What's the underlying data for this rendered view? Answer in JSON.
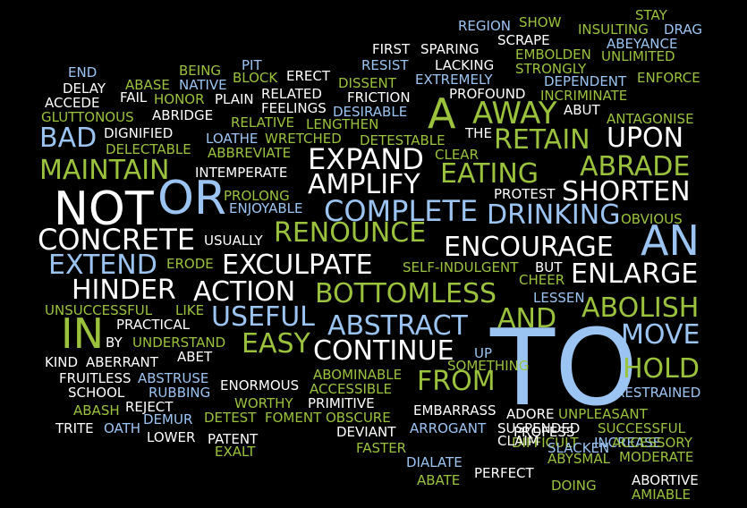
{
  "palette": {
    "background": "#000000",
    "white": "#ffffff",
    "blue": "#9cc4f2",
    "green": "#9bc23c"
  },
  "words": [
    {
      "text": "TO",
      "color": "blue"
    },
    {
      "text": "NOT",
      "color": "white"
    },
    {
      "text": "OR",
      "color": "blue"
    },
    {
      "text": "AN",
      "color": "blue"
    },
    {
      "text": "A",
      "color": "green"
    },
    {
      "text": "IN",
      "color": "green"
    },
    {
      "text": "AWAY",
      "color": "green"
    },
    {
      "text": "UPON",
      "color": "white"
    },
    {
      "text": "RETAIN",
      "color": "green"
    },
    {
      "text": "BAD",
      "color": "blue"
    },
    {
      "text": "MAINTAIN",
      "color": "green"
    },
    {
      "text": "EXPAND",
      "color": "white"
    },
    {
      "text": "AMPLIFY",
      "color": "white"
    },
    {
      "text": "EATING",
      "color": "green"
    },
    {
      "text": "ABRADE",
      "color": "green"
    },
    {
      "text": "SHORTEN",
      "color": "white"
    },
    {
      "text": "COMPLETE",
      "color": "blue"
    },
    {
      "text": "DRINKING",
      "color": "blue"
    },
    {
      "text": "CONCRETE",
      "color": "white"
    },
    {
      "text": "RENOUNCE",
      "color": "green"
    },
    {
      "text": "ENCOURAGE",
      "color": "white"
    },
    {
      "text": "EXTEND",
      "color": "blue"
    },
    {
      "text": "EXCULPATE",
      "color": "white"
    },
    {
      "text": "ENLARGE",
      "color": "white"
    },
    {
      "text": "HINDER",
      "color": "white"
    },
    {
      "text": "ACTION",
      "color": "white"
    },
    {
      "text": "BOTTOMLESS",
      "color": "green"
    },
    {
      "text": "ABOLISH",
      "color": "green"
    },
    {
      "text": "USEFUL",
      "color": "blue"
    },
    {
      "text": "ABSTRACT",
      "color": "blue"
    },
    {
      "text": "AND",
      "color": "green"
    },
    {
      "text": "MOVE",
      "color": "blue"
    },
    {
      "text": "EASY",
      "color": "green"
    },
    {
      "text": "CONTINUE",
      "color": "white"
    },
    {
      "text": "FROM",
      "color": "green"
    },
    {
      "text": "HOLD",
      "color": "green"
    },
    {
      "text": "REGION",
      "color": "blue"
    },
    {
      "text": "SHOW",
      "color": "green"
    },
    {
      "text": "STAY",
      "color": "green"
    },
    {
      "text": "INSULTING",
      "color": "green"
    },
    {
      "text": "DRAG",
      "color": "blue"
    },
    {
      "text": "ABEYANCE",
      "color": "blue"
    },
    {
      "text": "SCRAPE",
      "color": "white"
    },
    {
      "text": "FIRST",
      "color": "white"
    },
    {
      "text": "SPARING",
      "color": "white"
    },
    {
      "text": "EMBOLDEN",
      "color": "green"
    },
    {
      "text": "UNLIMITED",
      "color": "green"
    },
    {
      "text": "RESIST",
      "color": "blue"
    },
    {
      "text": "LACKING",
      "color": "white"
    },
    {
      "text": "STRONGLY",
      "color": "green"
    },
    {
      "text": "END",
      "color": "blue"
    },
    {
      "text": "BEING",
      "color": "green"
    },
    {
      "text": "PIT",
      "color": "blue"
    },
    {
      "text": "ABASE",
      "color": "green"
    },
    {
      "text": "NATIVE",
      "color": "blue"
    },
    {
      "text": "ERECT",
      "color": "white"
    },
    {
      "text": "DISSENT",
      "color": "green"
    },
    {
      "text": "EXTREMELY",
      "color": "blue"
    },
    {
      "text": "DEPENDENT",
      "color": "blue"
    },
    {
      "text": "ENFORCE",
      "color": "green"
    },
    {
      "text": "ACCEDE",
      "color": "white"
    },
    {
      "text": "BLOCK",
      "color": "green"
    },
    {
      "text": "DELAY",
      "color": "white"
    },
    {
      "text": "FAIL",
      "color": "white"
    },
    {
      "text": "HONOR",
      "color": "green"
    },
    {
      "text": "PLAIN",
      "color": "white"
    },
    {
      "text": "RELATED",
      "color": "white"
    },
    {
      "text": "FRICTION",
      "color": "white"
    },
    {
      "text": "PROFOUND",
      "color": "white"
    },
    {
      "text": "INCRIMINATE",
      "color": "green"
    },
    {
      "text": "GLUTTONOUS",
      "color": "green"
    },
    {
      "text": "ABRIDGE",
      "color": "white"
    },
    {
      "text": "FEELINGS",
      "color": "white"
    },
    {
      "text": "DESIRABLE",
      "color": "blue"
    },
    {
      "text": "ABUT",
      "color": "white"
    },
    {
      "text": "ANTAGONISE",
      "color": "green"
    },
    {
      "text": "RELATIVE",
      "color": "green"
    },
    {
      "text": "LENGTHEN",
      "color": "green"
    },
    {
      "text": "DIGNIFIED",
      "color": "white"
    },
    {
      "text": "THE",
      "color": "white"
    },
    {
      "text": "LOATHE",
      "color": "blue"
    },
    {
      "text": "WRETCHED",
      "color": "green"
    },
    {
      "text": "DETESTABLE",
      "color": "green"
    },
    {
      "text": "DELECTABLE",
      "color": "green"
    },
    {
      "text": "ABBREVIATE",
      "color": "green"
    },
    {
      "text": "CLEAR",
      "color": "green"
    },
    {
      "text": "INTEMPERATE",
      "color": "white"
    },
    {
      "text": "PROLONG",
      "color": "green"
    },
    {
      "text": "PROTEST",
      "color": "white"
    },
    {
      "text": "ENJOYABLE",
      "color": "blue"
    },
    {
      "text": "OBVIOUS",
      "color": "green"
    },
    {
      "text": "USUALLY",
      "color": "white"
    },
    {
      "text": "ERODE",
      "color": "green"
    },
    {
      "text": "SELF-INDULGENT",
      "color": "green"
    },
    {
      "text": "BUT",
      "color": "white"
    },
    {
      "text": "CHEER",
      "color": "green"
    },
    {
      "text": "LESSEN",
      "color": "blue"
    },
    {
      "text": "UNSUCCESSFUL",
      "color": "green"
    },
    {
      "text": "LIKE",
      "color": "green"
    },
    {
      "text": "PRACTICAL",
      "color": "white"
    },
    {
      "text": "BY",
      "color": "white"
    },
    {
      "text": "UNDERSTAND",
      "color": "green"
    },
    {
      "text": "KIND",
      "color": "white"
    },
    {
      "text": "ABERRANT",
      "color": "white"
    },
    {
      "text": "ABET",
      "color": "white"
    },
    {
      "text": "SOMETHING",
      "color": "green"
    },
    {
      "text": "UP",
      "color": "blue"
    },
    {
      "text": "FRUITLESS",
      "color": "white"
    },
    {
      "text": "ABSTRUSE",
      "color": "blue"
    },
    {
      "text": "ABOMINABLE",
      "color": "green"
    },
    {
      "text": "ACCESSIBLE",
      "color": "green"
    },
    {
      "text": "SCHOOL",
      "color": "white"
    },
    {
      "text": "RUBBING",
      "color": "blue"
    },
    {
      "text": "ENORMOUS",
      "color": "white"
    },
    {
      "text": "RESTRAINED",
      "color": "blue"
    },
    {
      "text": "WORTHY",
      "color": "green"
    },
    {
      "text": "PRIMITIVE",
      "color": "white"
    },
    {
      "text": "ABASH",
      "color": "green"
    },
    {
      "text": "REJECT",
      "color": "white"
    },
    {
      "text": "EMBARRASS",
      "color": "white"
    },
    {
      "text": "ADORE",
      "color": "white"
    },
    {
      "text": "UNPLEASANT",
      "color": "green"
    },
    {
      "text": "DEMUR",
      "color": "blue"
    },
    {
      "text": "DETEST",
      "color": "green"
    },
    {
      "text": "FOMENT",
      "color": "green"
    },
    {
      "text": "OBSCURE",
      "color": "green"
    },
    {
      "text": "SUCCESSFUL",
      "color": "green"
    },
    {
      "text": "TRITE",
      "color": "white"
    },
    {
      "text": "OATH",
      "color": "blue"
    },
    {
      "text": "ARROGANT",
      "color": "blue"
    },
    {
      "text": "SUSPENDED",
      "color": "white"
    },
    {
      "text": "LOWER",
      "color": "white"
    },
    {
      "text": "PATENT",
      "color": "white"
    },
    {
      "text": "PROFESS",
      "color": "white"
    },
    {
      "text": "DEVIANT",
      "color": "white"
    },
    {
      "text": "DIFFICULT",
      "color": "green"
    },
    {
      "text": "INCREASE",
      "color": "blue"
    },
    {
      "text": "ACCESSORY",
      "color": "green"
    },
    {
      "text": "EXALT",
      "color": "green"
    },
    {
      "text": "FASTER",
      "color": "green"
    },
    {
      "text": "SLACKEN",
      "color": "blue"
    },
    {
      "text": "CLAIM",
      "color": "white"
    },
    {
      "text": "ABYSMAL",
      "color": "green"
    },
    {
      "text": "MODERATE",
      "color": "green"
    },
    {
      "text": "DIALATE",
      "color": "blue"
    },
    {
      "text": "PERFECT",
      "color": "white"
    },
    {
      "text": "ABORTIVE",
      "color": "white"
    },
    {
      "text": "ABATE",
      "color": "green"
    },
    {
      "text": "DOING",
      "color": "green"
    },
    {
      "text": "AMIABLE",
      "color": "green"
    }
  ]
}
